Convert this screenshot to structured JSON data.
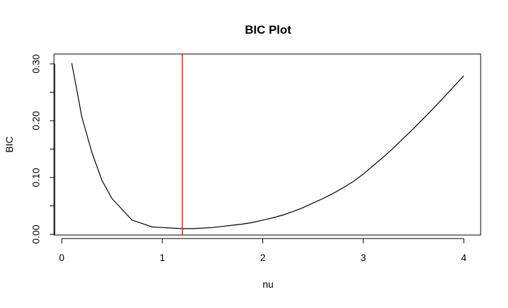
{
  "chart_data": {
    "type": "line",
    "title": "BIC Plot",
    "xlabel": "nu",
    "ylabel": "BIC",
    "xlim": [
      0,
      4
    ],
    "ylim": [
      0,
      0.3
    ],
    "x_ticks": [
      0,
      1,
      2,
      3,
      4
    ],
    "y_ticks": [
      0.0,
      0.1,
      0.2,
      0.3
    ],
    "y_tick_labels": [
      "0.00",
      "0.10",
      "0.20",
      "0.30"
    ],
    "grid": false,
    "series": [
      {
        "color": "#000000",
        "x": [
          0.1,
          0.2,
          0.3,
          0.4,
          0.5,
          0.6,
          0.7,
          0.8,
          0.9,
          1.0,
          1.1,
          1.2,
          1.3,
          1.4,
          1.5,
          1.6,
          1.7,
          1.8,
          1.9,
          2.0,
          2.1,
          2.2,
          2.3,
          2.4,
          2.5,
          2.6,
          2.7,
          2.8,
          2.9,
          3.0,
          3.1,
          3.2,
          3.3,
          3.4,
          3.5,
          3.6,
          3.7,
          3.8,
          3.9,
          4.0
        ],
        "y": [
          0.301,
          0.206,
          0.144,
          0.095,
          0.063,
          0.044,
          0.025,
          0.019,
          0.013,
          0.012,
          0.011,
          0.01,
          0.01,
          0.011,
          0.012,
          0.014,
          0.016,
          0.018,
          0.021,
          0.025,
          0.029,
          0.034,
          0.04,
          0.047,
          0.055,
          0.063,
          0.072,
          0.082,
          0.093,
          0.106,
          0.121,
          0.136,
          0.152,
          0.169,
          0.186,
          0.204,
          0.222,
          0.241,
          0.26,
          0.279
        ]
      }
    ],
    "vline": {
      "x": 1.2,
      "color": "#ff0000"
    }
  }
}
